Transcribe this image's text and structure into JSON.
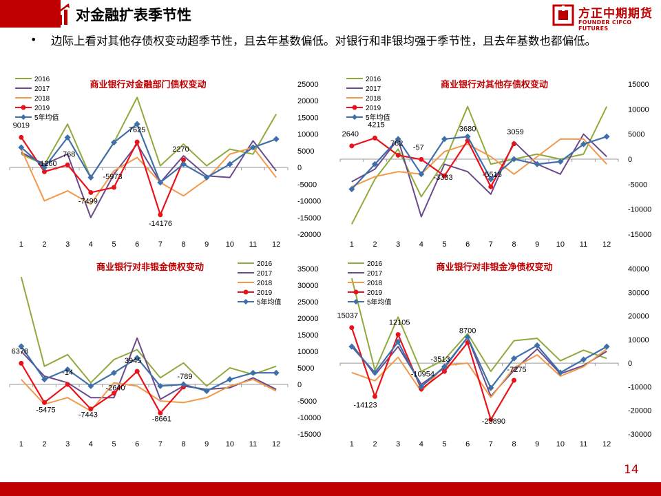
{
  "header": {
    "title": "对金融扩表季节性",
    "logo_cn": "方正中期期货",
    "logo_en": "FOUNDER CIFCO FUTURES"
  },
  "bullet": {
    "text": "边际上看对其他存债权变动超季节性，且去年基数偏低。对银行和非银均强于季节性，且去年基数也都偏低。"
  },
  "page_number": "14",
  "colors": {
    "brand_red": "#c00000",
    "series_2016": "#8faa3c",
    "series_2017": "#6b4a8c",
    "series_2018": "#f2994a",
    "series_2019": "#e8131a",
    "series_avg": "#3f6fa8"
  },
  "chart_data": [
    {
      "type": "line",
      "title": "商业银行对金融部门债权变动",
      "x": [
        1,
        2,
        3,
        4,
        5,
        6,
        7,
        8,
        9,
        10,
        11,
        12
      ],
      "ylim": [
        -20000,
        25000
      ],
      "yticks": [
        25000,
        20000,
        15000,
        10000,
        5000,
        0,
        -5000,
        -10000,
        -15000,
        -20000
      ],
      "legend_position": "top-left",
      "series": [
        {
          "name": "2016",
          "values": [
            4000,
            800,
            13000,
            -3000,
            7500,
            21000,
            500,
            7000,
            500,
            5500,
            4000,
            16000
          ]
        },
        {
          "name": "2017",
          "values": [
            4500,
            1000,
            4000,
            -15000,
            -2000,
            7000,
            -4500,
            3500,
            -2500,
            -3000,
            8000,
            -1000
          ]
        },
        {
          "name": "2018",
          "values": [
            5500,
            -10000,
            -7000,
            -11000,
            -1000,
            3000,
            -4500,
            -8500,
            -3500,
            4000,
            6000,
            -3000
          ]
        },
        {
          "name": "2019",
          "values": [
            9019,
            -1260,
            768,
            -7499,
            -5973,
            7625,
            -14176,
            2270
          ]
        },
        {
          "name": "5年均值",
          "values": [
            6000,
            0,
            9000,
            -3000,
            7500,
            13000,
            -4500,
            1000,
            -3000,
            1000,
            6000,
            8500
          ]
        }
      ],
      "labels": [
        "9019",
        "-1260",
        "768",
        "-7499",
        "-5973",
        "7625",
        "-14176",
        "2270"
      ]
    },
    {
      "type": "line",
      "title": "商业银行对其他存债权变动",
      "x": [
        1,
        2,
        3,
        4,
        5,
        6,
        7,
        8,
        9,
        10,
        11,
        12
      ],
      "ylim": [
        -15000,
        15000
      ],
      "yticks": [
        15000,
        10000,
        5000,
        0,
        -5000,
        -10000,
        -15000
      ],
      "legend_position": "top-left",
      "series": [
        {
          "name": "2016",
          "values": [
            -13000,
            -4000,
            2000,
            -7500,
            -500,
            10500,
            -1000,
            0,
            1000,
            0,
            1000,
            10500
          ]
        },
        {
          "name": "2017",
          "values": [
            -4500,
            -2000,
            4000,
            -11500,
            -1000,
            -2500,
            -7000,
            3500,
            -1000,
            -3000,
            5000,
            500
          ]
        },
        {
          "name": "2018",
          "values": [
            -5500,
            -3500,
            -2500,
            -3000,
            1500,
            3000,
            500,
            -3000,
            500,
            4000,
            4000,
            -1000
          ]
        },
        {
          "name": "2019",
          "values": [
            2640,
            4215,
            782,
            -57,
            -3333,
            3680,
            -5515,
            3059
          ]
        },
        {
          "name": "5年均值",
          "values": [
            -6000,
            -1000,
            4000,
            -3000,
            4000,
            4500,
            -4000,
            0,
            -1000,
            -500,
            3000,
            4500
          ]
        }
      ],
      "labels": [
        "2640",
        "4215",
        "782",
        "-57",
        "-3333",
        "3680",
        "-5515",
        "3059"
      ]
    },
    {
      "type": "line",
      "title": "商业银行对非银金债权变动",
      "x": [
        1,
        2,
        3,
        4,
        5,
        6,
        7,
        8,
        9,
        10,
        11,
        12
      ],
      "ylim": [
        -15000,
        35000
      ],
      "yticks": [
        35000,
        30000,
        25000,
        20000,
        15000,
        10000,
        5000,
        0,
        -5000,
        -10000,
        -15000
      ],
      "legend_position": "top-right",
      "series": [
        {
          "name": "2016",
          "values": [
            32500,
            5500,
            9000,
            500,
            7500,
            10500,
            2000,
            6500,
            -500,
            5000,
            3000,
            5500
          ]
        },
        {
          "name": "2017",
          "values": [
            10000,
            2500,
            500,
            -4000,
            -4000,
            14000,
            -4500,
            -500,
            -1500,
            -1000,
            2000,
            -1500
          ]
        },
        {
          "name": "2018",
          "values": [
            1500,
            -6000,
            -4000,
            -8000,
            500,
            -500,
            -5000,
            -5500,
            -4000,
            -500,
            1500,
            -2000
          ]
        },
        {
          "name": "2019",
          "values": [
            6378,
            -5475,
            -14,
            -7443,
            -2640,
            3945,
            -8661,
            -789
          ]
        },
        {
          "name": "5年均值",
          "values": [
            11500,
            1500,
            4500,
            -500,
            3500,
            8000,
            -500,
            0,
            -2000,
            1500,
            3500,
            3500
          ]
        }
      ],
      "labels": [
        "6378",
        "-5475",
        "-14",
        "-7443",
        "-2640",
        "3945",
        "-8661",
        "-789"
      ]
    },
    {
      "type": "line",
      "title": "商业银行对非银金净债权变动",
      "x": [
        1,
        2,
        3,
        4,
        5,
        6,
        7,
        8,
        9,
        10,
        11,
        12
      ],
      "ylim": [
        -30000,
        40000
      ],
      "yticks": [
        40000,
        30000,
        20000,
        10000,
        0,
        -10000,
        -20000,
        -30000
      ],
      "legend_position": "top-left",
      "series": [
        {
          "name": "2016",
          "values": [
            36000,
            -3000,
            19500,
            -3500,
            1500,
            12500,
            -3500,
            9500,
            10500,
            1000,
            5500,
            2000
          ]
        },
        {
          "name": "2017",
          "values": [
            8000,
            -5000,
            7000,
            -9000,
            -2000,
            11000,
            -14000,
            -3000,
            6000,
            -4500,
            -1000,
            5000
          ]
        },
        {
          "name": "2018",
          "values": [
            -4000,
            -7500,
            2500,
            -12000,
            -1000,
            0,
            -14500,
            -2000,
            3500,
            -5500,
            -1500,
            6000
          ]
        },
        {
          "name": "2019",
          "values": [
            15037,
            -14123,
            12105,
            -10954,
            -3513,
            8700,
            -23890,
            -7275
          ]
        },
        {
          "name": "5年均值",
          "values": [
            7000,
            -4000,
            9000,
            -10000,
            -1500,
            11000,
            -10500,
            2000,
            7500,
            -4000,
            1500,
            7000
          ]
        }
      ],
      "labels": [
        "15037",
        "-14123",
        "12105",
        "-10954",
        "-3513",
        "8700",
        "-23890",
        "-7275"
      ]
    }
  ]
}
